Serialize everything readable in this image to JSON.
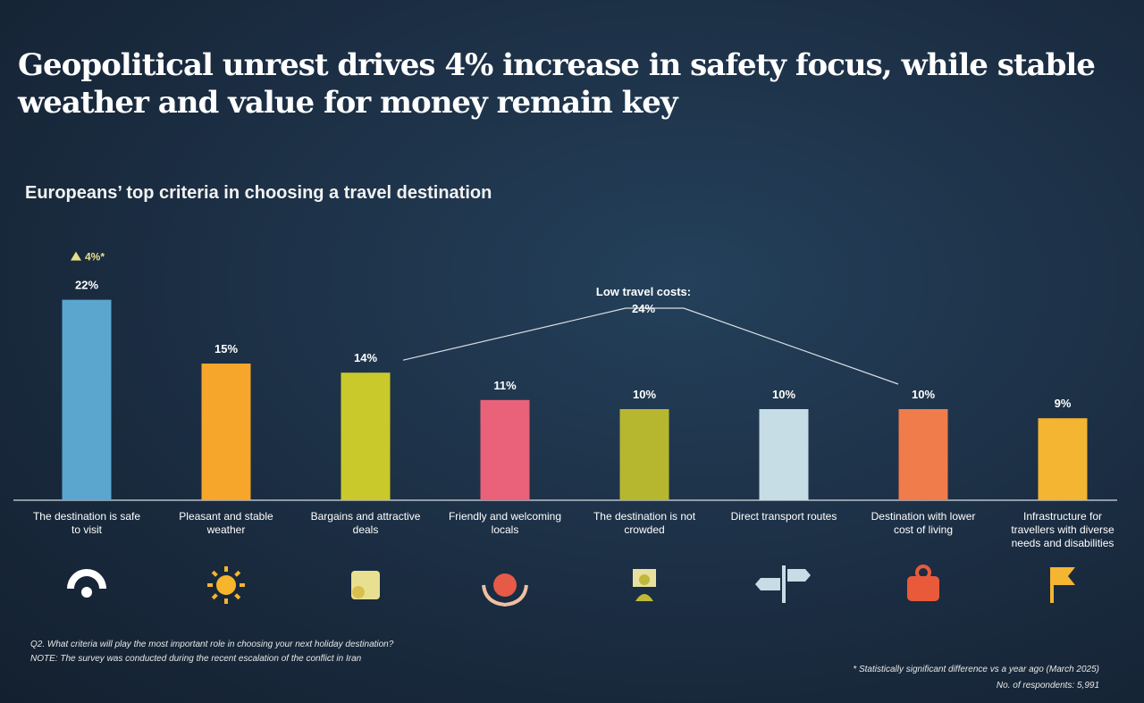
{
  "title": "Geopolitical unrest drives 4% increase in safety focus, while stable weather and value for money remain key",
  "chart_data": {
    "type": "bar",
    "title": "Europeans’ top criteria in choosing a travel destination",
    "categories": [
      "The destination is safe to visit",
      "Pleasant and stable weather",
      "Bargains and attractive deals",
      "Friendly and welcoming locals",
      "The destination is not crowded",
      "Direct transport routes",
      "Destination with lower cost of living",
      "Infrastructure for travellers with diverse needs and disabilities"
    ],
    "values": [
      22,
      15,
      14,
      11,
      10,
      10,
      10,
      9
    ],
    "value_labels": [
      "22%",
      "15%",
      "14%",
      "11%",
      "10%",
      "10%",
      "10%",
      "9%"
    ],
    "unit": "%",
    "colors": [
      "#5ba6cf",
      "#f6a62b",
      "#c9c92c",
      "#e9627a",
      "#b7b72f",
      "#c7dde6",
      "#f07b4b",
      "#f3b532"
    ],
    "icons": [
      "safety-icon",
      "sun-icon",
      "wallet-icon",
      "globe-hands-icon",
      "person-icon",
      "signpost-icon",
      "piggy-bank-icon",
      "flag-icon"
    ],
    "annotations": {
      "safety_change": "4%*",
      "safety_change_direction": "up",
      "group_label": "Low travel costs:",
      "group_value": "24%"
    },
    "grid": false
  },
  "footnotes": {
    "question": "Q2. What criteria will play the most important role in choosing your next holiday destination?",
    "note": "NOTE: The survey was conducted during the recent escalation of the conflict in Iran",
    "significance": "* Statistically significant difference vs a year ago (March 2025)",
    "respondents": "No. of respondents: 5,991"
  }
}
